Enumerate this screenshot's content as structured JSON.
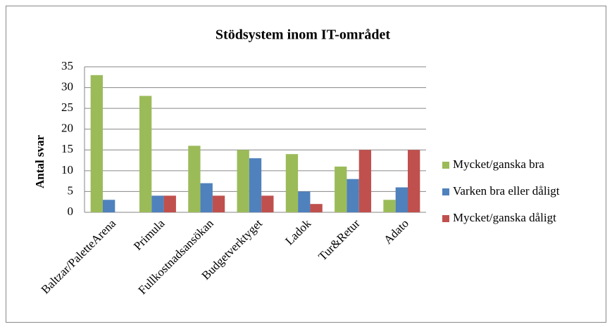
{
  "chart_data": {
    "type": "bar",
    "title": "Stödsystem inom IT-området",
    "y_label": "Antal svar",
    "categories": [
      "Baltzar/PaletteArena",
      "Primula",
      "Fullkostnadsansökan",
      "Budgetverktyget",
      "Ladok",
      "Tur&Retur",
      "Adato"
    ],
    "series": [
      {
        "name": "Mycket/ganska bra",
        "color": "#9bbb59",
        "values": [
          33,
          28,
          16,
          15,
          14,
          11,
          3
        ]
      },
      {
        "name": "Varken bra eller dåligt",
        "color": "#4f81bd",
        "values": [
          3,
          4,
          7,
          13,
          5,
          8,
          6
        ]
      },
      {
        "name": "Mycket/ganska dåligt",
        "color": "#c0504d",
        "values": [
          0,
          4,
          4,
          4,
          2,
          15,
          15
        ]
      }
    ],
    "ylim": [
      0,
      35
    ],
    "yticks": [
      0,
      5,
      10,
      15,
      20,
      25,
      30,
      35
    ],
    "grid": true,
    "legend": "right"
  }
}
